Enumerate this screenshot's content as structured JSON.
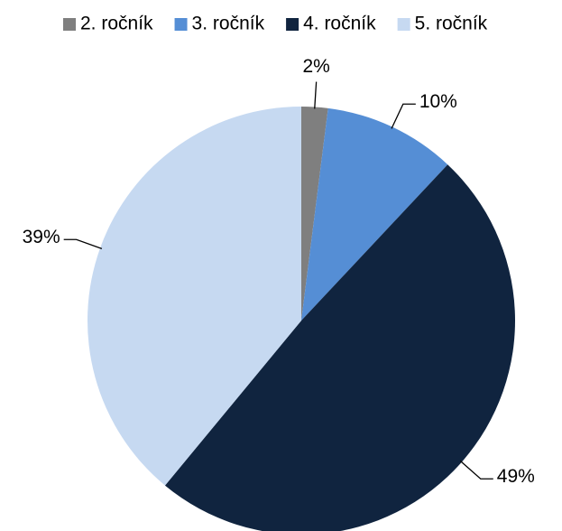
{
  "chart_data": {
    "type": "pie",
    "categories": [
      "2. ročník",
      "3. ročník",
      "4. ročník",
      "5. ročník"
    ],
    "values": [
      2,
      10,
      49,
      39
    ],
    "value_labels": [
      "2%",
      "10%",
      "49%",
      "39%"
    ],
    "colors": [
      "#7f7f7f",
      "#558ed5",
      "#10243f",
      "#c6d9f1"
    ],
    "legend": "top"
  }
}
